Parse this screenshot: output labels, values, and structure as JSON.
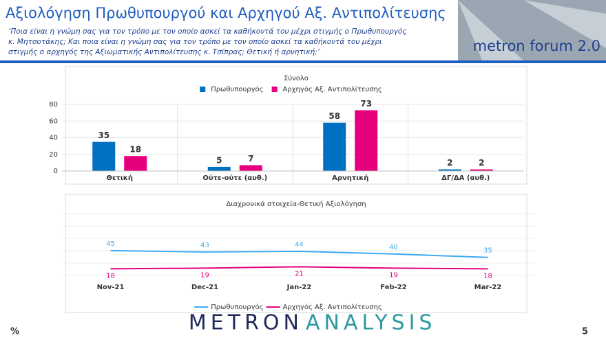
{
  "header": {
    "title": "Αξιολόγηση Πρωθυπουργού και Αρχηγού Αξ. Αντιπολίτευσης",
    "subtitle_lines": [
      "‘Ποια είναι η γνώμη σας για τον τρόπο με τον οποίο ασκεί τα καθήκοντά του μέχρι στιγμής ο Πρωθυπουργός",
      "κ. Μητσοτάκης; Και ποια είναι η γνώμη σας για τον τρόπο με τον οποίο ασκεί τα καθήκοντά του μέχρι",
      "στιγμής ο αρχηγός της Αξιωματικής Αντιπολίτευσης κ. Τσίπρας; Θετική ή αρνητική;’"
    ],
    "logo": "metron forum 2.0"
  },
  "footer": {
    "unit": "%",
    "brand": [
      "METRON",
      "ANALYSIS"
    ],
    "page": "5"
  },
  "chart_data": [
    {
      "type": "bar",
      "title": "Σύνολο",
      "categories": [
        "Θετική",
        "Ούτε-ούτε (αυθ.)",
        "Αρνητική",
        "ΔΓ/ΔΑ (αυθ.)"
      ],
      "series": [
        {
          "name": "Πρωθυπουργός",
          "color": "#0070c0",
          "values": [
            35,
            5,
            58,
            2
          ]
        },
        {
          "name": "Αρχηγός Αξ. Αντιπολίτευσης",
          "color": "#e6007e",
          "values": [
            18,
            7,
            73,
            2
          ]
        }
      ],
      "ylim": [
        0,
        80
      ],
      "yticks": [
        0,
        20,
        40,
        60,
        80
      ],
      "grid": true
    },
    {
      "type": "line",
      "title": "Διαχρονικά στοιχεία-Θετική Αξιολόγηση",
      "categories": [
        "Nov-21",
        "Dec-21",
        "Jan-22",
        "Feb-22",
        "Mar-22"
      ],
      "series": [
        {
          "name": "Πρωθυπουργός",
          "color": "#3fa9f5",
          "values": [
            45,
            43,
            44,
            40,
            35
          ]
        },
        {
          "name": "Αρχηγός Αξ. Αντιπολίτευσης",
          "color": "#e6007e",
          "values": [
            18,
            19,
            21,
            19,
            18
          ]
        }
      ],
      "ylim": [
        0,
        100
      ]
    }
  ]
}
